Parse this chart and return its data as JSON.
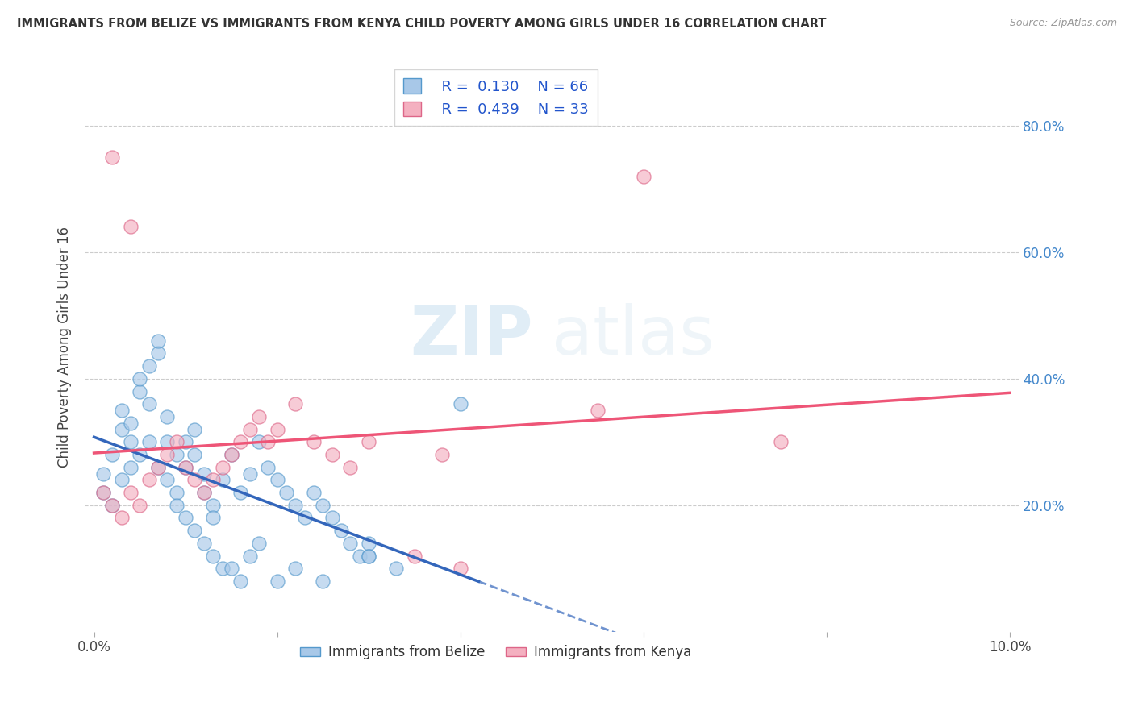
{
  "title": "IMMIGRANTS FROM BELIZE VS IMMIGRANTS FROM KENYA CHILD POVERTY AMONG GIRLS UNDER 16 CORRELATION CHART",
  "source": "Source: ZipAtlas.com",
  "ylabel": "Child Poverty Among Girls Under 16",
  "belize_R": 0.13,
  "belize_N": 66,
  "kenya_R": 0.439,
  "kenya_N": 33,
  "belize_color": "#a8c8e8",
  "kenya_color": "#f4b0c0",
  "belize_edge_color": "#5599cc",
  "kenya_edge_color": "#dd6688",
  "belize_trend_color": "#3366bb",
  "kenya_trend_color": "#ee5577",
  "belize_scatter": [
    [
      0.001,
      0.25
    ],
    [
      0.002,
      0.28
    ],
    [
      0.003,
      0.32
    ],
    [
      0.003,
      0.35
    ],
    [
      0.004,
      0.3
    ],
    [
      0.004,
      0.33
    ],
    [
      0.005,
      0.38
    ],
    [
      0.005,
      0.4
    ],
    [
      0.006,
      0.36
    ],
    [
      0.006,
      0.42
    ],
    [
      0.007,
      0.44
    ],
    [
      0.007,
      0.46
    ],
    [
      0.008,
      0.34
    ],
    [
      0.008,
      0.3
    ],
    [
      0.009,
      0.28
    ],
    [
      0.009,
      0.22
    ],
    [
      0.01,
      0.26
    ],
    [
      0.01,
      0.3
    ],
    [
      0.011,
      0.32
    ],
    [
      0.011,
      0.28
    ],
    [
      0.012,
      0.25
    ],
    [
      0.012,
      0.22
    ],
    [
      0.013,
      0.2
    ],
    [
      0.013,
      0.18
    ],
    [
      0.014,
      0.24
    ],
    [
      0.015,
      0.28
    ],
    [
      0.016,
      0.22
    ],
    [
      0.017,
      0.25
    ],
    [
      0.018,
      0.3
    ],
    [
      0.019,
      0.26
    ],
    [
      0.02,
      0.24
    ],
    [
      0.021,
      0.22
    ],
    [
      0.022,
      0.2
    ],
    [
      0.023,
      0.18
    ],
    [
      0.024,
      0.22
    ],
    [
      0.025,
      0.2
    ],
    [
      0.026,
      0.18
    ],
    [
      0.027,
      0.16
    ],
    [
      0.028,
      0.14
    ],
    [
      0.029,
      0.12
    ],
    [
      0.03,
      0.14
    ],
    [
      0.03,
      0.12
    ],
    [
      0.001,
      0.22
    ],
    [
      0.002,
      0.2
    ],
    [
      0.003,
      0.24
    ],
    [
      0.004,
      0.26
    ],
    [
      0.005,
      0.28
    ],
    [
      0.006,
      0.3
    ],
    [
      0.007,
      0.26
    ],
    [
      0.008,
      0.24
    ],
    [
      0.009,
      0.2
    ],
    [
      0.01,
      0.18
    ],
    [
      0.011,
      0.16
    ],
    [
      0.012,
      0.14
    ],
    [
      0.013,
      0.12
    ],
    [
      0.014,
      0.1
    ],
    [
      0.015,
      0.1
    ],
    [
      0.016,
      0.08
    ],
    [
      0.017,
      0.12
    ],
    [
      0.018,
      0.14
    ],
    [
      0.02,
      0.08
    ],
    [
      0.022,
      0.1
    ],
    [
      0.025,
      0.08
    ],
    [
      0.03,
      0.12
    ],
    [
      0.033,
      0.1
    ],
    [
      0.04,
      0.36
    ]
  ],
  "kenya_scatter": [
    [
      0.001,
      0.22
    ],
    [
      0.002,
      0.2
    ],
    [
      0.003,
      0.18
    ],
    [
      0.004,
      0.22
    ],
    [
      0.005,
      0.2
    ],
    [
      0.006,
      0.24
    ],
    [
      0.007,
      0.26
    ],
    [
      0.008,
      0.28
    ],
    [
      0.009,
      0.3
    ],
    [
      0.01,
      0.26
    ],
    [
      0.011,
      0.24
    ],
    [
      0.012,
      0.22
    ],
    [
      0.013,
      0.24
    ],
    [
      0.014,
      0.26
    ],
    [
      0.015,
      0.28
    ],
    [
      0.016,
      0.3
    ],
    [
      0.017,
      0.32
    ],
    [
      0.018,
      0.34
    ],
    [
      0.019,
      0.3
    ],
    [
      0.02,
      0.32
    ],
    [
      0.002,
      0.75
    ],
    [
      0.004,
      0.64
    ],
    [
      0.022,
      0.36
    ],
    [
      0.024,
      0.3
    ],
    [
      0.026,
      0.28
    ],
    [
      0.028,
      0.26
    ],
    [
      0.03,
      0.3
    ],
    [
      0.035,
      0.12
    ],
    [
      0.038,
      0.28
    ],
    [
      0.04,
      0.1
    ],
    [
      0.055,
      0.35
    ],
    [
      0.06,
      0.72
    ],
    [
      0.075,
      0.3
    ]
  ],
  "xlim_min": 0.0,
  "xlim_max": 0.1,
  "ylim_min": 0.0,
  "ylim_max": 0.9,
  "xtick_vals": [
    0.0,
    0.02,
    0.04,
    0.06,
    0.08,
    0.1
  ],
  "xticklabels": [
    "0.0%",
    "",
    "",
    "",
    "",
    "10.0%"
  ],
  "ytick_vals": [
    0.2,
    0.4,
    0.6,
    0.8
  ],
  "yticklabels_right": [
    "20.0%",
    "40.0%",
    "60.0%",
    "80.0%"
  ],
  "grid_yticks": [
    0.2,
    0.4,
    0.6,
    0.8
  ],
  "watermark_zip": "ZIP",
  "watermark_atlas": "atlas",
  "background_color": "#ffffff",
  "grid_color": "#cccccc"
}
